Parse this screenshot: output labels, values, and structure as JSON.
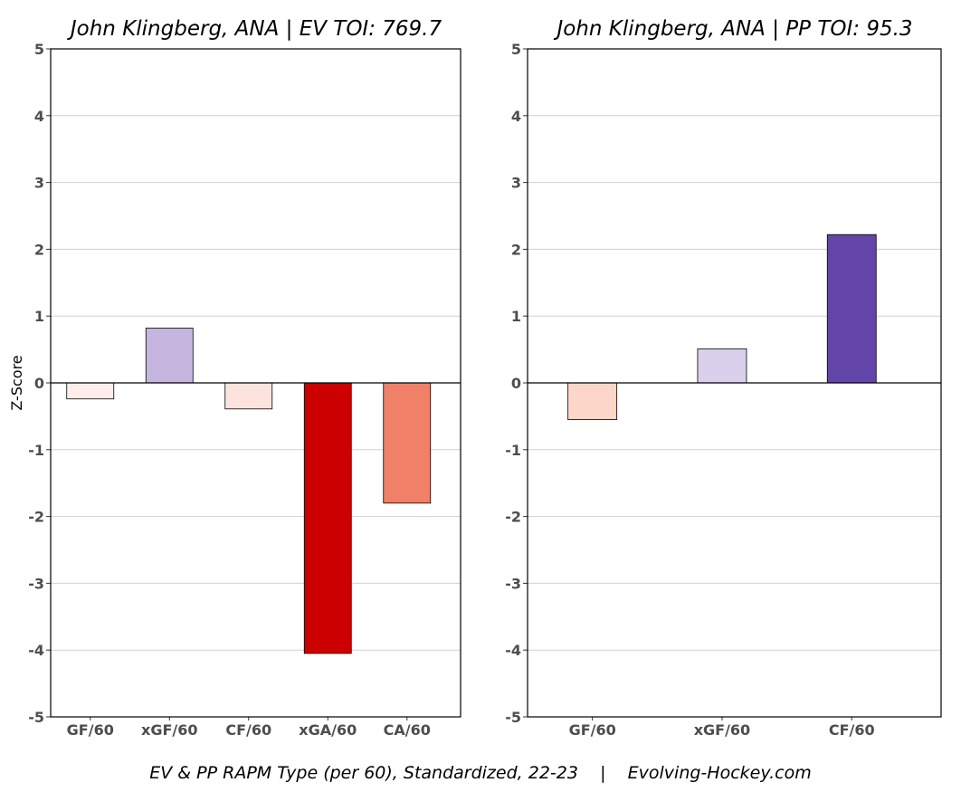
{
  "chart_data": [
    {
      "type": "bar",
      "title": "John Klingberg, ANA  |  EV TOI: 769.7",
      "ylabel": "Z-Score",
      "ylim": [
        -5,
        5
      ],
      "yticks": [
        5,
        4,
        3,
        2,
        1,
        0,
        -1,
        -2,
        -3,
        -4,
        -5
      ],
      "grid": true,
      "categories": [
        "GF/60",
        "xGF/60",
        "CF/60",
        "xGA/60",
        "CA/60"
      ],
      "values": [
        -0.24,
        0.82,
        -0.39,
        -4.05,
        -1.8
      ],
      "colors": [
        "#fdeeeb",
        "#c6b5df",
        "#fde3de",
        "#cc0000",
        "#f08067"
      ]
    },
    {
      "type": "bar",
      "title": "John Klingberg, ANA  |  PP TOI: 95.3",
      "ylabel": "",
      "ylim": [
        -5,
        5
      ],
      "yticks": [
        5,
        4,
        3,
        2,
        1,
        0,
        -1,
        -2,
        -3,
        -4,
        -5
      ],
      "grid": true,
      "categories": [
        "GF/60",
        "xGF/60",
        "CF/60"
      ],
      "values": [
        -0.55,
        0.51,
        2.22
      ],
      "colors": [
        "#fdd6ca",
        "#dbd0ec",
        "#6345a9"
      ]
    }
  ],
  "caption": "EV & PP RAPM Type (per 60), Standardized, 22-23    |    Evolving-Hockey.com"
}
